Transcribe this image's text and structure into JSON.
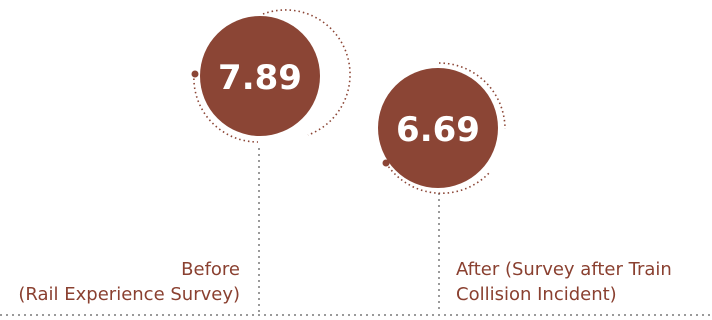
{
  "chart_data": {
    "type": "bubble-comparison",
    "title": "",
    "series": [
      {
        "label_lines": [
          "Before",
          "(Rail Experience Survey)"
        ],
        "value": 7.89,
        "display": "7.89"
      },
      {
        "label_lines": [
          "After (Survey after Train",
          "Collision Incident)"
        ],
        "value": 6.69,
        "display": "6.69"
      }
    ],
    "colors": {
      "bubble": "#8b4535",
      "accent_dot": "#8b4535",
      "dotted_line": "#9a9a9a",
      "label_text": "#8a4030",
      "value_text": "#ffffff"
    }
  }
}
